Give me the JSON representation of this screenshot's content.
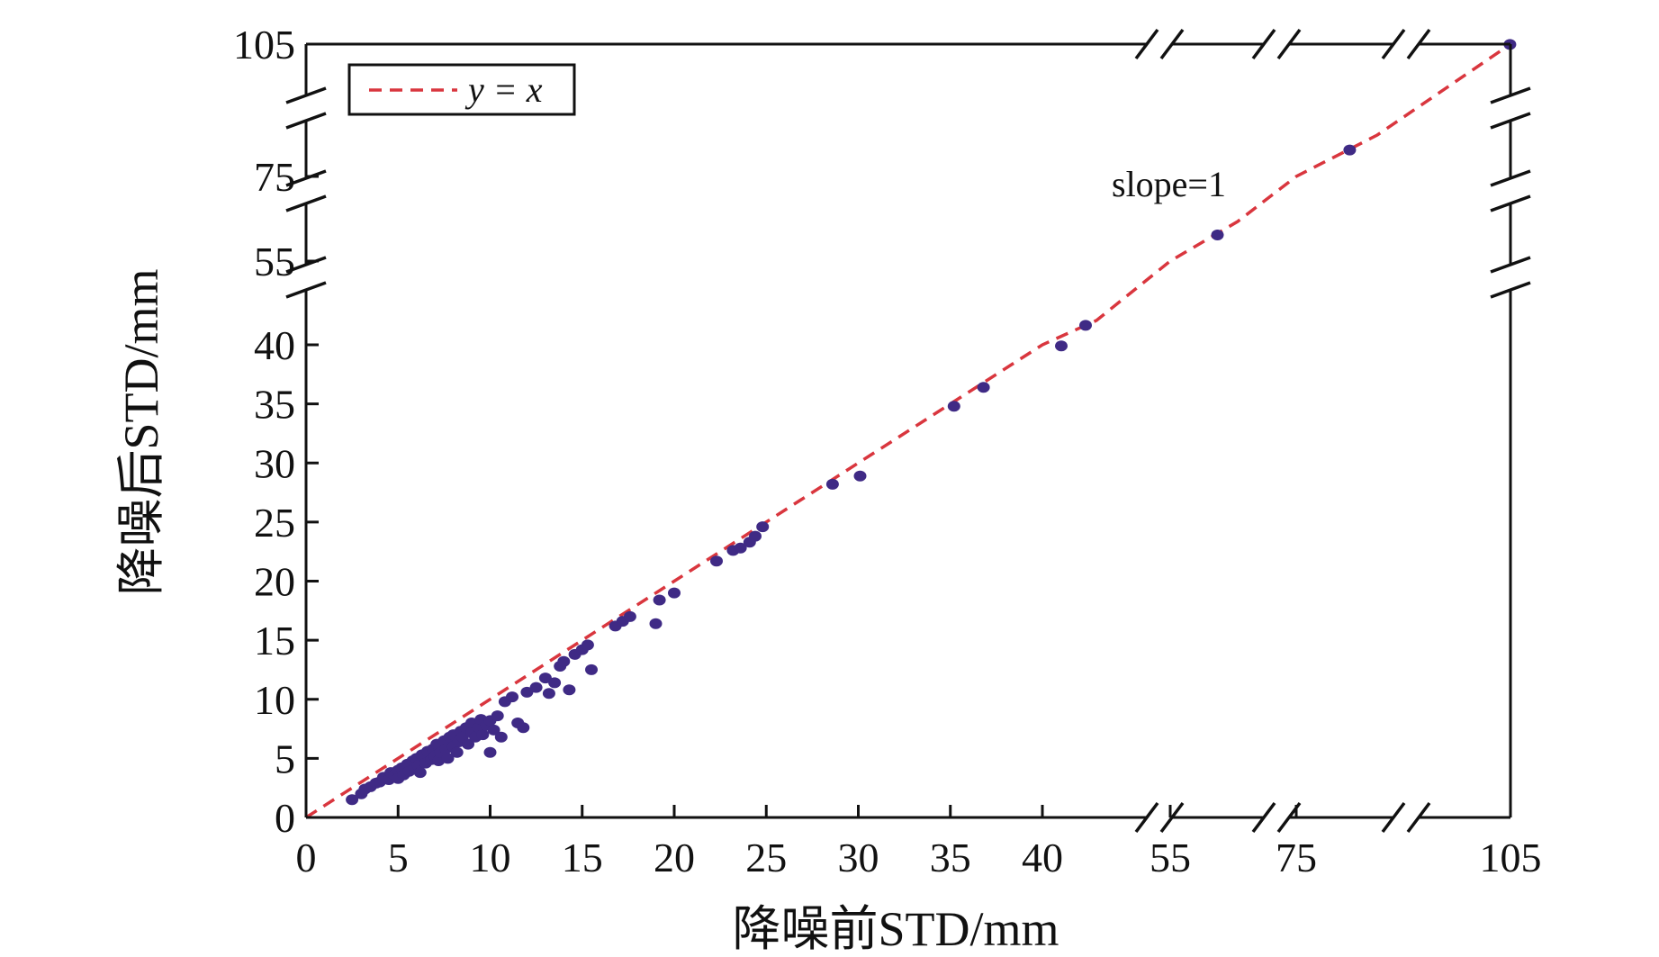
{
  "chart_data": {
    "type": "scatter",
    "xlabel": "降噪前STD/mm",
    "ylabel": "降噪后STD/mm",
    "axis_break": true,
    "segments": [
      {
        "min": 0,
        "max": 42
      },
      {
        "min": 55,
        "max": 60
      },
      {
        "min": 75,
        "max": 80
      },
      {
        "min": 105,
        "max": 105
      }
    ],
    "x_ticks": [
      0,
      5,
      10,
      15,
      20,
      25,
      30,
      35,
      40,
      55,
      75,
      105
    ],
    "x_tick_labels": [
      "0",
      "5",
      "10",
      "15",
      "20",
      "25",
      "30",
      "35",
      "40",
      "55",
      "75",
      "105"
    ],
    "y_ticks": [
      0,
      5,
      10,
      15,
      20,
      25,
      30,
      35,
      40,
      55,
      75,
      105
    ],
    "y_tick_labels": [
      "0",
      "5",
      "10",
      "15",
      "20",
      "25",
      "30",
      "35",
      "40",
      "55",
      "75",
      "105"
    ],
    "grid": false,
    "legend": {
      "position": "top-left",
      "entries": [
        {
          "label": "y = x",
          "style": "dashed",
          "color": "#d9363e"
        }
      ]
    },
    "annotation": {
      "text": "slope=1"
    },
    "marker_color": "#3f2a85",
    "line_color": "#d9363e",
    "reference_line": {
      "slope": 1,
      "intercept": 0
    },
    "points": [
      [
        2.5,
        1.5
      ],
      [
        3.0,
        2.0
      ],
      [
        3.2,
        2.4
      ],
      [
        3.5,
        2.6
      ],
      [
        3.8,
        2.9
      ],
      [
        4.0,
        3.0
      ],
      [
        4.2,
        3.4
      ],
      [
        4.5,
        3.2
      ],
      [
        4.6,
        3.8
      ],
      [
        4.8,
        3.6
      ],
      [
        5.0,
        4.0
      ],
      [
        5.0,
        3.3
      ],
      [
        5.2,
        4.2
      ],
      [
        5.3,
        3.6
      ],
      [
        5.5,
        4.5
      ],
      [
        5.6,
        3.9
      ],
      [
        5.8,
        4.8
      ],
      [
        5.9,
        4.2
      ],
      [
        6.0,
        5.0
      ],
      [
        6.1,
        4.4
      ],
      [
        6.2,
        3.8
      ],
      [
        6.3,
        5.3
      ],
      [
        6.5,
        4.6
      ],
      [
        6.6,
        5.6
      ],
      [
        6.8,
        4.9
      ],
      [
        6.9,
        5.8
      ],
      [
        7.0,
        5.2
      ],
      [
        7.1,
        6.2
      ],
      [
        7.2,
        4.8
      ],
      [
        7.3,
        5.5
      ],
      [
        7.5,
        6.5
      ],
      [
        7.6,
        5.8
      ],
      [
        7.7,
        5.0
      ],
      [
        7.8,
        6.8
      ],
      [
        8.0,
        6.0
      ],
      [
        8.0,
        7.0
      ],
      [
        8.2,
        5.5
      ],
      [
        8.3,
        6.4
      ],
      [
        8.4,
        7.3
      ],
      [
        8.5,
        6.8
      ],
      [
        8.7,
        7.6
      ],
      [
        8.8,
        6.2
      ],
      [
        9.0,
        7.2
      ],
      [
        9.0,
        8.0
      ],
      [
        9.2,
        6.8
      ],
      [
        9.4,
        7.6
      ],
      [
        9.5,
        8.3
      ],
      [
        9.6,
        7.0
      ],
      [
        9.8,
        7.8
      ],
      [
        10.0,
        8.2
      ],
      [
        10.2,
        7.4
      ],
      [
        10.4,
        8.6
      ],
      [
        10.0,
        5.5
      ],
      [
        10.6,
        6.8
      ],
      [
        10.8,
        9.8
      ],
      [
        11.2,
        10.2
      ],
      [
        11.5,
        8.0
      ],
      [
        11.8,
        7.6
      ],
      [
        12.0,
        10.6
      ],
      [
        12.5,
        11.0
      ],
      [
        13.0,
        11.8
      ],
      [
        13.2,
        10.5
      ],
      [
        13.5,
        11.4
      ],
      [
        13.8,
        12.8
      ],
      [
        14.0,
        13.2
      ],
      [
        14.3,
        10.8
      ],
      [
        14.6,
        13.8
      ],
      [
        15.0,
        14.2
      ],
      [
        15.3,
        14.6
      ],
      [
        15.5,
        12.5
      ],
      [
        16.8,
        16.2
      ],
      [
        17.2,
        16.6
      ],
      [
        17.6,
        17.0
      ],
      [
        19.0,
        16.4
      ],
      [
        19.2,
        18.4
      ],
      [
        20.0,
        19.0
      ],
      [
        22.3,
        21.7
      ],
      [
        23.2,
        22.6
      ],
      [
        23.6,
        22.8
      ],
      [
        24.1,
        23.3
      ],
      [
        24.4,
        23.8
      ],
      [
        24.8,
        24.6
      ],
      [
        28.6,
        28.2
      ],
      [
        30.1,
        28.9
      ],
      [
        35.2,
        34.8
      ],
      [
        36.8,
        36.4
      ],
      [
        40.7,
        39.9
      ],
      [
        41.6,
        41.6
      ],
      [
        58.5,
        58.3
      ],
      [
        78.3,
        78.2
      ],
      [
        104.9,
        104.9
      ]
    ]
  }
}
